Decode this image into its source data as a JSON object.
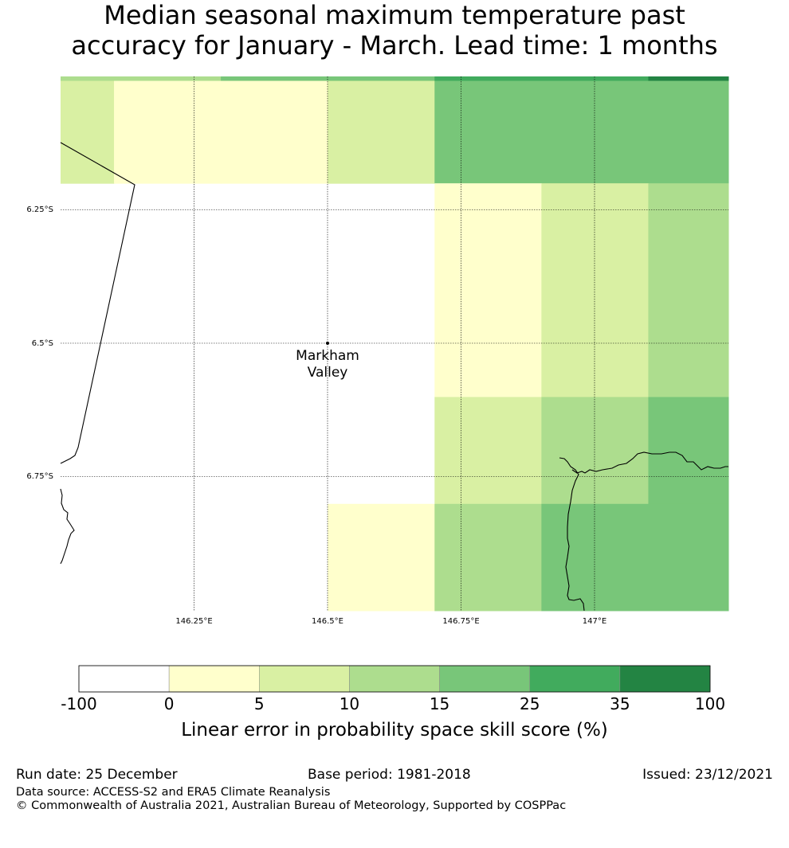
{
  "title": {
    "line1": "Median seasonal maximum temperature past",
    "line2": "accuracy for January - March. Lead time: 1 months"
  },
  "map": {
    "lat_ticks": [
      "6.25°S",
      "6.5°S",
      "6.75°S"
    ],
    "lon_ticks": [
      "146.25°E",
      "146.5°E",
      "146.75°E",
      "147°E"
    ],
    "location": {
      "name_line1": "Markham",
      "name_line2": "Valley",
      "lon": 146.5,
      "lat": -6.5
    },
    "extent": {
      "lon_min": 146.0,
      "lon_max": 147.25,
      "lat_min": -7.0,
      "lat_max": -6.0
    },
    "cells": [
      {
        "lon0": 146.0,
        "lon1": 146.1,
        "lat0": -6.2,
        "lat1": -6.0,
        "bin": 2
      },
      {
        "lon0": 146.1,
        "lon1": 146.3,
        "lat0": -6.2,
        "lat1": -6.0,
        "bin": 1
      },
      {
        "lon0": 146.3,
        "lon1": 146.5,
        "lat0": -6.2,
        "lat1": -6.0,
        "bin": 1
      },
      {
        "lon0": 146.5,
        "lon1": 146.7,
        "lat0": -6.2,
        "lat1": -6.0,
        "bin": 2
      },
      {
        "lon0": 146.7,
        "lon1": 147.25,
        "lat0": -6.2,
        "lat1": -6.0,
        "bin": 4
      },
      {
        "lon0": 146.0,
        "lon1": 146.3,
        "lat0": -6.0075,
        "lat1": -6.0,
        "bin": 3
      },
      {
        "lon0": 146.3,
        "lon1": 146.7,
        "lat0": -6.0075,
        "lat1": -6.0,
        "bin": 4
      },
      {
        "lon0": 146.7,
        "lon1": 147.1,
        "lat0": -6.0075,
        "lat1": -6.0,
        "bin": 5
      },
      {
        "lon0": 147.1,
        "lon1": 147.25,
        "lat0": -6.0075,
        "lat1": -6.0,
        "bin": 6
      },
      {
        "lon0": 146.7,
        "lon1": 146.9,
        "lat0": -6.6,
        "lat1": -6.2,
        "bin": 1
      },
      {
        "lon0": 146.9,
        "lon1": 147.1,
        "lat0": -6.6,
        "lat1": -6.2,
        "bin": 2
      },
      {
        "lon0": 147.1,
        "lon1": 147.25,
        "lat0": -6.6,
        "lat1": -6.2,
        "bin": 3
      },
      {
        "lon0": 146.7,
        "lon1": 146.9,
        "lat0": -6.8,
        "lat1": -6.6,
        "bin": 2
      },
      {
        "lon0": 146.9,
        "lon1": 147.1,
        "lat0": -6.8,
        "lat1": -6.6,
        "bin": 3
      },
      {
        "lon0": 147.1,
        "lon1": 147.25,
        "lat0": -6.8,
        "lat1": -6.6,
        "bin": 4
      },
      {
        "lon0": 146.5,
        "lon1": 146.7,
        "lat0": -7.0,
        "lat1": -6.8,
        "bin": 1
      },
      {
        "lon0": 146.7,
        "lon1": 146.9,
        "lat0": -7.0,
        "lat1": -6.8,
        "bin": 3
      },
      {
        "lon0": 146.9,
        "lon1": 147.25,
        "lat0": -7.0,
        "lat1": -6.8,
        "bin": 4
      }
    ]
  },
  "colorbar": {
    "tick_labels": [
      "-100",
      "0",
      "5",
      "10",
      "15",
      "25",
      "35",
      "100"
    ],
    "colors": [
      "#ffffff",
      "#ffffcc",
      "#d9f0a3",
      "#addd8e",
      "#78c679",
      "#41ab5d",
      "#238443"
    ],
    "label": "Linear error in probability space skill score (%)"
  },
  "footer": {
    "run_date": "Run date: 25 December",
    "base_period": "Base period: 1981-2018",
    "issued": "Issued: 23/12/2021",
    "data_source": "Data source: ACCESS-S2 and ERA5 Climate Reanalysis",
    "copyright": "© Commonwealth of Australia 2021, Australian Bureau of Meteorology, Supported by COSPPac"
  }
}
